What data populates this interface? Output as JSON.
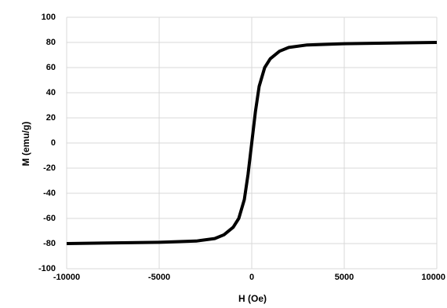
{
  "chart_data": {
    "type": "line",
    "x_label": "H (Oe)",
    "y_label": "M (emu/g)",
    "x": [
      -10000,
      -5000,
      -3000,
      -2000,
      -1500,
      -1000,
      -700,
      -400,
      -200,
      0,
      200,
      400,
      700,
      1000,
      1500,
      2000,
      3000,
      5000,
      10000
    ],
    "values": [
      -80,
      -79,
      -78,
      -76,
      -73,
      -67,
      -60,
      -45,
      -25,
      0,
      25,
      45,
      60,
      67,
      73,
      76,
      78,
      79,
      80
    ],
    "color": "#000000",
    "xlim": [
      -10000,
      10000
    ],
    "xticks": [
      -10000,
      -5000,
      0,
      5000,
      10000
    ],
    "ylim": [
      -100,
      100
    ],
    "yticks": [
      -100,
      -80,
      -60,
      -40,
      -20,
      0,
      20,
      40,
      60,
      80,
      100
    ],
    "grid": true
  }
}
